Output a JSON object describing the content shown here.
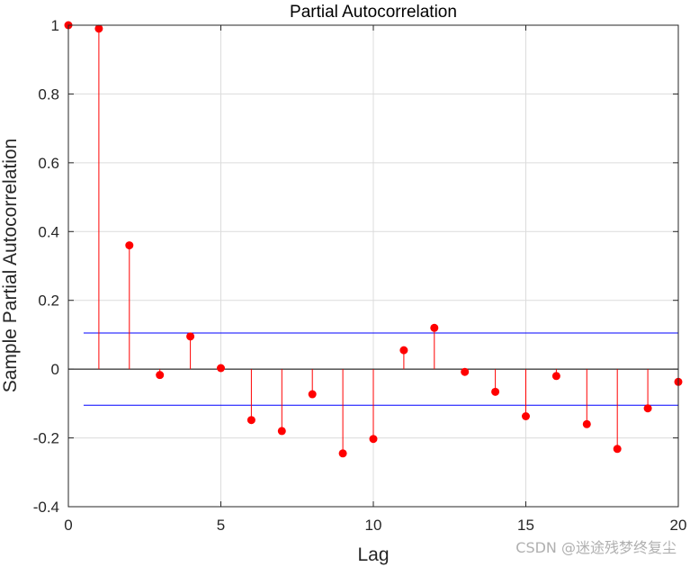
{
  "chart_data": {
    "type": "stem",
    "title": "Partial Autocorrelation",
    "xlabel": "Lag",
    "ylabel": "Sample Partial Autocorrelation",
    "xlim": [
      0,
      20
    ],
    "ylim": [
      -0.4,
      1
    ],
    "xticks": [
      0,
      5,
      10,
      15,
      20
    ],
    "xtick_labels": [
      "0",
      "5",
      "10",
      "15",
      "20"
    ],
    "yticks": [
      -0.4,
      -0.2,
      0,
      0.2,
      0.4,
      0.6,
      0.8,
      1
    ],
    "ytick_labels": [
      "-0.4",
      "-0.2",
      "0",
      "0.2",
      "0.4",
      "0.6",
      "0.8",
      "1"
    ],
    "grid": true,
    "series": [
      {
        "x": [
          0,
          1,
          2,
          3,
          4,
          5,
          6,
          7,
          8,
          9,
          10,
          11,
          12,
          13,
          14,
          15,
          16,
          17,
          18,
          19,
          20
        ],
        "values": [
          1.0,
          0.99,
          0.36,
          -0.017,
          0.095,
          0.003,
          -0.148,
          -0.18,
          -0.073,
          -0.245,
          -0.203,
          0.055,
          0.12,
          -0.008,
          -0.066,
          -0.137,
          -0.02,
          -0.16,
          -0.232,
          -0.114,
          -0.037
        ],
        "color": "#ff0000"
      }
    ],
    "bounds": {
      "upper": 0.105,
      "lower": -0.105,
      "color": "#0000ff"
    }
  },
  "watermark": "CSDN @迷途残梦终复尘"
}
